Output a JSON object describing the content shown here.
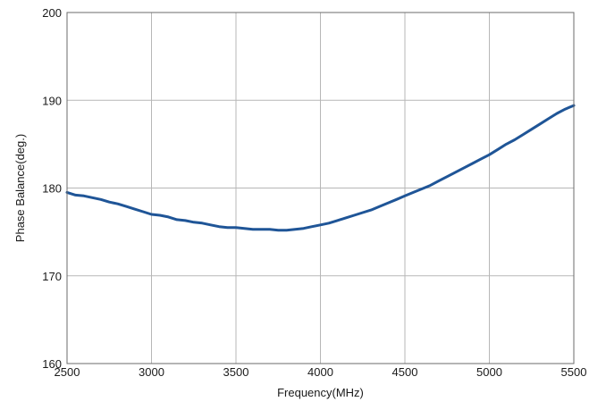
{
  "chart_data": {
    "type": "line",
    "title": "",
    "xlabel": "Frequency(MHz)",
    "ylabel": "Phase Balance(deg.)",
    "xlim": [
      2500,
      5500
    ],
    "ylim": [
      160,
      200
    ],
    "xticks": [
      2500,
      3000,
      3500,
      4000,
      4500,
      5000,
      5500
    ],
    "yticks": [
      160,
      170,
      180,
      190,
      200
    ],
    "grid": true,
    "legend": "none",
    "line_color": "#1f5597",
    "series": [
      {
        "x": [
          2500,
          2550,
          2600,
          2650,
          2700,
          2750,
          2800,
          2850,
          2900,
          2950,
          3000,
          3050,
          3100,
          3150,
          3200,
          3250,
          3300,
          3350,
          3400,
          3450,
          3500,
          3550,
          3600,
          3650,
          3700,
          3750,
          3800,
          3850,
          3900,
          3950,
          4000,
          4050,
          4100,
          4150,
          4200,
          4250,
          4300,
          4350,
          4400,
          4450,
          4500,
          4550,
          4600,
          4650,
          4700,
          4750,
          4800,
          4850,
          4900,
          4950,
          5000,
          5050,
          5100,
          5150,
          5200,
          5250,
          5300,
          5350,
          5400,
          5450,
          5500
        ],
        "y": [
          179.5,
          179.2,
          179.1,
          178.9,
          178.7,
          178.4,
          178.2,
          177.9,
          177.6,
          177.3,
          177.0,
          176.9,
          176.7,
          176.4,
          176.3,
          176.1,
          176.0,
          175.8,
          175.6,
          175.5,
          175.5,
          175.4,
          175.3,
          175.3,
          175.3,
          175.2,
          175.2,
          175.3,
          175.4,
          175.6,
          175.8,
          176.0,
          176.3,
          176.6,
          176.9,
          177.2,
          177.5,
          177.9,
          178.3,
          178.7,
          179.1,
          179.5,
          179.9,
          180.3,
          180.8,
          181.3,
          181.8,
          182.3,
          182.8,
          183.3,
          183.8,
          184.4,
          185.0,
          185.5,
          186.1,
          186.7,
          187.3,
          187.9,
          188.5,
          189.0,
          189.4
        ]
      }
    ]
  }
}
